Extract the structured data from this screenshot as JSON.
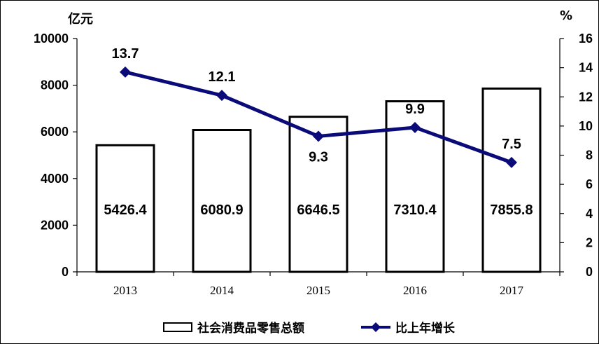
{
  "chart_data": {
    "type": "bar+line",
    "categories": [
      "2013",
      "2014",
      "2015",
      "2016",
      "2017"
    ],
    "series": [
      {
        "name": "社会消费品零售总额",
        "type": "bar",
        "axis": "left",
        "values": [
          5426.4,
          6080.9,
          6646.5,
          7310.4,
          7855.8
        ],
        "labels": [
          "5426.4",
          "6080.9",
          "6646.5",
          "7310.4",
          "7855.8"
        ]
      },
      {
        "name": "比上年增长",
        "type": "line",
        "axis": "right",
        "values": [
          13.7,
          12.1,
          9.3,
          9.9,
          7.5
        ],
        "labels": [
          "13.7",
          "12.1",
          "9.3",
          "9.9",
          "7.5"
        ],
        "color": "#0a0a78"
      }
    ],
    "y_left": {
      "unit": "亿元",
      "min": 0,
      "max": 10000,
      "ticks": [
        "0",
        "2000",
        "4000",
        "6000",
        "8000",
        "10000"
      ]
    },
    "y_right": {
      "unit": "%",
      "min": 0,
      "max": 16,
      "ticks": [
        "0",
        "2",
        "4",
        "6",
        "8",
        "10",
        "12",
        "14",
        "16"
      ]
    },
    "legend_position": "bottom",
    "grid": false
  }
}
